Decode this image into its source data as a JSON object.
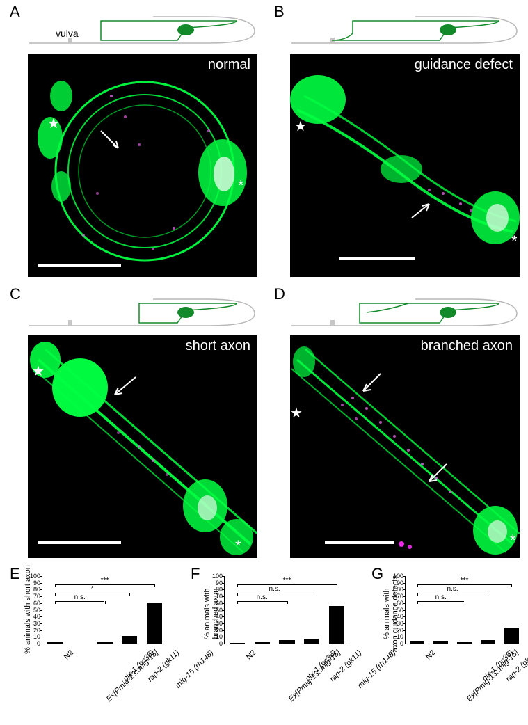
{
  "panels": {
    "A": {
      "letter": "A",
      "label": "normal",
      "vulva_label": "vulva"
    },
    "B": {
      "letter": "B",
      "label": "guidance defect"
    },
    "C": {
      "letter": "C",
      "label": "short axon"
    },
    "D": {
      "letter": "D",
      "label": "branched axon"
    },
    "E": {
      "letter": "E"
    },
    "F": {
      "letter": "F"
    },
    "G": {
      "letter": "G"
    }
  },
  "diagram": {
    "outline_color": "#b7b7b7",
    "neuron_color": "#128a2a",
    "vulva_fill": "#c6c6c6"
  },
  "micrograph": {
    "bg": "#000000",
    "scale_bar_color": "#ffffff",
    "label_color": "#ffffff",
    "green": "#00ff41",
    "magenta": "#e060e0"
  },
  "charts": {
    "categories": [
      "N2",
      "Ex[Pmig-13::mig-15]",
      "plx-1 (nc36)",
      "rap-2 (gk11)",
      "mig-15 (rh148)"
    ],
    "category_roman_first": [
      true,
      false,
      false,
      false,
      false
    ],
    "ylim": [
      0,
      100
    ],
    "ytick_step": 10,
    "bar_color": "#000000",
    "axis_color": "#000000",
    "E": {
      "ylabel": "% animals with short axon",
      "values": [
        3,
        0,
        3,
        11,
        61
      ],
      "sig": [
        {
          "from": 0,
          "to": 2,
          "label": "n.s."
        },
        {
          "from": 0,
          "to": 3,
          "label": "*"
        },
        {
          "from": 0,
          "to": 4,
          "label": "***"
        }
      ]
    },
    "F": {
      "ylabel": "% animals with\nbranched axon",
      "values": [
        1,
        3,
        5,
        6,
        56
      ],
      "sig": [
        {
          "from": 0,
          "to": 2,
          "label": "n.s."
        },
        {
          "from": 0,
          "to": 3,
          "label": "n.s."
        },
        {
          "from": 0,
          "to": 4,
          "label": "***"
        }
      ]
    },
    "G": {
      "ylabel": "% animals with\naxon guidance defects",
      "values": [
        4,
        4,
        3,
        5,
        23
      ],
      "sig": [
        {
          "from": 0,
          "to": 2,
          "label": "n.s."
        },
        {
          "from": 0,
          "to": 3,
          "label": "n.s."
        },
        {
          "from": 0,
          "to": 4,
          "label": "***"
        }
      ]
    }
  }
}
